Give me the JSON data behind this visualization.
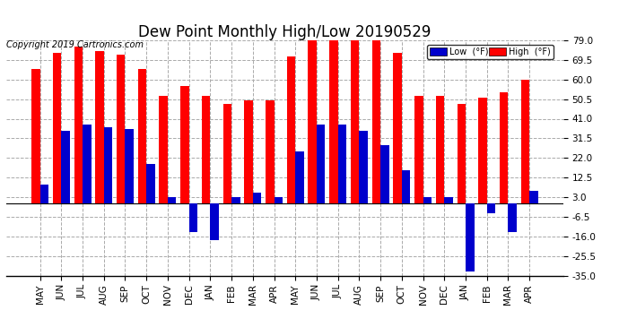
{
  "title": "Dew Point Monthly High/Low 20190529",
  "copyright": "Copyright 2019 Cartronics.com",
  "categories": [
    "MAY",
    "JUN",
    "JUL",
    "AUG",
    "SEP",
    "OCT",
    "NOV",
    "DEC",
    "JAN",
    "FEB",
    "MAR",
    "APR",
    "MAY",
    "JUN",
    "JUL",
    "AUG",
    "SEP",
    "OCT",
    "NOV",
    "DEC",
    "JAN",
    "FEB",
    "MAR",
    "APR"
  ],
  "high_values": [
    65,
    73,
    76,
    74,
    72,
    65,
    52,
    57,
    52,
    48,
    50,
    50,
    71,
    79,
    80,
    80,
    79,
    73,
    52,
    52,
    48,
    51,
    54,
    60
  ],
  "low_values": [
    9,
    35,
    38,
    37,
    36,
    19,
    3,
    -14,
    -18,
    3,
    5,
    3,
    25,
    38,
    38,
    35,
    28,
    16,
    3,
    3,
    -33,
    -5,
    -14,
    6
  ],
  "ylim": [
    -35,
    79
  ],
  "yticks": [
    -35.0,
    -25.5,
    -16.0,
    -6.5,
    3.0,
    12.5,
    22.0,
    31.5,
    41.0,
    50.5,
    60.0,
    69.5,
    79.0
  ],
  "bar_width": 0.4,
  "high_color": "#ff0000",
  "low_color": "#0000cc",
  "bg_color": "#ffffff",
  "grid_color": "#aaaaaa",
  "title_fontsize": 12,
  "tick_fontsize": 7.5,
  "copyright_fontsize": 7,
  "legend_low_color": "#0000cc",
  "legend_high_color": "#ff0000"
}
